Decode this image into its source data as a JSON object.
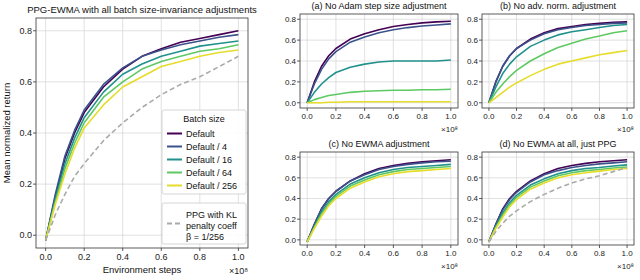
{
  "chart_data": [
    {
      "type": "line",
      "title": "PPG-EWMA with all batch size-invariance adjustments",
      "x_label": "Environment steps",
      "y_label": "Mean normalized return",
      "x_multiplier": "×10⁸",
      "legend_title": "Batch size",
      "legend": "lower right",
      "grid": true,
      "xlim": [
        -0.05,
        1.05
      ],
      "ylim": [
        -0.05,
        0.85
      ],
      "xticks": [
        {
          "value": 0,
          "label": "0.0"
        },
        {
          "value": 0.2,
          "label": "0.2"
        },
        {
          "value": 0.4,
          "label": "0.4"
        },
        {
          "value": 0.6,
          "label": "0.6"
        },
        {
          "value": 0.8,
          "label": "0.8"
        },
        {
          "value": 1,
          "label": "1.0"
        }
      ],
      "yticks": [
        {
          "value": 0,
          "label": "0.0"
        },
        {
          "value": 0.2,
          "label": "0.2"
        },
        {
          "value": 0.4,
          "label": "0.4"
        },
        {
          "value": 0.6,
          "label": "0.6"
        },
        {
          "value": 0.8,
          "label": "0.8"
        }
      ],
      "x": [
        0,
        0.05,
        0.1,
        0.15,
        0.2,
        0.3,
        0.4,
        0.5,
        0.6,
        0.7,
        0.8,
        0.9,
        1.0
      ],
      "series": [
        {
          "name": "Default",
          "color": "#440154",
          "values": [
            -0.02,
            0.15,
            0.3,
            0.4,
            0.48,
            0.58,
            0.65,
            0.7,
            0.73,
            0.755,
            0.77,
            0.785,
            0.8
          ]
        },
        {
          "name": "Default / 4",
          "color": "#3b528b",
          "values": [
            -0.02,
            0.16,
            0.31,
            0.41,
            0.49,
            0.59,
            0.655,
            0.7,
            0.725,
            0.745,
            0.76,
            0.775,
            0.785
          ]
        },
        {
          "name": "Default / 16",
          "color": "#21918c",
          "values": [
            -0.02,
            0.14,
            0.28,
            0.38,
            0.46,
            0.56,
            0.63,
            0.67,
            0.7,
            0.72,
            0.74,
            0.75,
            0.76
          ]
        },
        {
          "name": "Default / 64",
          "color": "#5ec962",
          "values": [
            -0.02,
            0.13,
            0.26,
            0.36,
            0.44,
            0.54,
            0.6,
            0.65,
            0.68,
            0.7,
            0.72,
            0.73,
            0.745
          ]
        },
        {
          "name": "Default / 256",
          "color": "#e6dc2a",
          "values": [
            -0.02,
            0.12,
            0.24,
            0.34,
            0.42,
            0.51,
            0.58,
            0.62,
            0.66,
            0.68,
            0.7,
            0.715,
            0.725
          ]
        },
        {
          "name": "PPG with KL penalty coeff β = 1/256",
          "color": "#aaaaaa",
          "line_style": "dashed",
          "values": [
            -0.02,
            0.08,
            0.16,
            0.23,
            0.28,
            0.37,
            0.44,
            0.5,
            0.55,
            0.59,
            0.62,
            0.66,
            0.7
          ]
        }
      ]
    },
    {
      "type": "line",
      "title": "(a) No Adam step size adjustment",
      "x_multiplier": "×10⁸",
      "grid": true,
      "xlim": [
        -0.05,
        1.05
      ],
      "ylim": [
        -0.05,
        0.85
      ],
      "xticks": [
        {
          "value": 0,
          "label": "0.0"
        },
        {
          "value": 0.2,
          "label": "0.2"
        },
        {
          "value": 0.4,
          "label": "0.4"
        },
        {
          "value": 0.6,
          "label": "0.6"
        },
        {
          "value": 0.8,
          "label": "0.8"
        },
        {
          "value": 1,
          "label": "1.0"
        }
      ],
      "yticks": [
        {
          "value": 0,
          "label": "0.0"
        },
        {
          "value": 0.2,
          "label": "0.2"
        },
        {
          "value": 0.4,
          "label": "0.4"
        },
        {
          "value": 0.6,
          "label": "0.6"
        },
        {
          "value": 0.8,
          "label": "0.8"
        }
      ],
      "x": [
        0,
        0.05,
        0.1,
        0.15,
        0.2,
        0.3,
        0.4,
        0.5,
        0.6,
        0.7,
        0.8,
        0.9,
        1.0
      ],
      "series": [
        {
          "color": "#440154",
          "values": [
            0,
            0.2,
            0.35,
            0.45,
            0.52,
            0.61,
            0.66,
            0.7,
            0.73,
            0.75,
            0.765,
            0.775,
            0.78
          ]
        },
        {
          "color": "#3b528b",
          "values": [
            0,
            0.18,
            0.32,
            0.42,
            0.49,
            0.58,
            0.63,
            0.67,
            0.7,
            0.72,
            0.735,
            0.745,
            0.755
          ]
        },
        {
          "color": "#21918c",
          "values": [
            0,
            0.1,
            0.18,
            0.24,
            0.29,
            0.34,
            0.37,
            0.39,
            0.4,
            0.4,
            0.4,
            0.4,
            0.41
          ]
        },
        {
          "color": "#5ec962",
          "values": [
            0,
            0.03,
            0.05,
            0.07,
            0.08,
            0.1,
            0.11,
            0.115,
            0.12,
            0.12,
            0.125,
            0.125,
            0.13
          ]
        },
        {
          "color": "#e6dc2a",
          "values": [
            0,
            0,
            0,
            0.005,
            0.005,
            0.01,
            0.01,
            0.01,
            0.01,
            0.01,
            0.01,
            0.01,
            0.01
          ]
        }
      ]
    },
    {
      "type": "line",
      "title": "(b) No adv. norm. adjustment",
      "x_multiplier": "×10⁸",
      "grid": true,
      "xlim": [
        -0.05,
        1.05
      ],
      "ylim": [
        -0.05,
        0.85
      ],
      "xticks": [
        {
          "value": 0,
          "label": "0.0"
        },
        {
          "value": 0.2,
          "label": "0.2"
        },
        {
          "value": 0.4,
          "label": "0.4"
        },
        {
          "value": 0.6,
          "label": "0.6"
        },
        {
          "value": 0.8,
          "label": "0.8"
        },
        {
          "value": 1,
          "label": "1.0"
        }
      ],
      "yticks": [
        {
          "value": 0,
          "label": "0.0"
        },
        {
          "value": 0.2,
          "label": "0.2"
        },
        {
          "value": 0.4,
          "label": "0.4"
        },
        {
          "value": 0.6,
          "label": "0.6"
        },
        {
          "value": 0.8,
          "label": "0.8"
        }
      ],
      "x": [
        0,
        0.05,
        0.1,
        0.15,
        0.2,
        0.3,
        0.4,
        0.5,
        0.6,
        0.7,
        0.8,
        0.9,
        1.0
      ],
      "series": [
        {
          "color": "#440154",
          "values": [
            0,
            0.2,
            0.35,
            0.45,
            0.52,
            0.61,
            0.67,
            0.71,
            0.73,
            0.75,
            0.76,
            0.77,
            0.775
          ]
        },
        {
          "color": "#3b528b",
          "values": [
            0,
            0.2,
            0.35,
            0.45,
            0.52,
            0.6,
            0.66,
            0.7,
            0.72,
            0.74,
            0.75,
            0.76,
            0.765
          ]
        },
        {
          "color": "#21918c",
          "values": [
            0,
            0.15,
            0.28,
            0.37,
            0.44,
            0.54,
            0.6,
            0.65,
            0.68,
            0.7,
            0.72,
            0.74,
            0.75
          ]
        },
        {
          "color": "#5ec962",
          "values": [
            0,
            0.1,
            0.18,
            0.25,
            0.31,
            0.4,
            0.47,
            0.53,
            0.57,
            0.61,
            0.64,
            0.67,
            0.69
          ]
        },
        {
          "color": "#e6dc2a",
          "values": [
            0,
            0.05,
            0.1,
            0.15,
            0.19,
            0.26,
            0.32,
            0.37,
            0.4,
            0.43,
            0.46,
            0.48,
            0.5
          ]
        }
      ]
    },
    {
      "type": "line",
      "title": "(c) No EWMA adjustment",
      "x_multiplier": "×10⁸",
      "grid": true,
      "xlim": [
        -0.05,
        1.05
      ],
      "ylim": [
        -0.05,
        0.85
      ],
      "xticks": [
        {
          "value": 0,
          "label": "0.0"
        },
        {
          "value": 0.2,
          "label": "0.2"
        },
        {
          "value": 0.4,
          "label": "0.4"
        },
        {
          "value": 0.6,
          "label": "0.6"
        },
        {
          "value": 0.8,
          "label": "0.8"
        },
        {
          "value": 1,
          "label": "1.0"
        }
      ],
      "yticks": [
        {
          "value": 0,
          "label": "0.0"
        },
        {
          "value": 0.2,
          "label": "0.2"
        },
        {
          "value": 0.4,
          "label": "0.4"
        },
        {
          "value": 0.6,
          "label": "0.6"
        },
        {
          "value": 0.8,
          "label": "0.8"
        }
      ],
      "x": [
        0,
        0.05,
        0.1,
        0.15,
        0.2,
        0.3,
        0.4,
        0.5,
        0.6,
        0.7,
        0.8,
        0.9,
        1.0
      ],
      "series": [
        {
          "color": "#440154",
          "values": [
            -0.02,
            0.15,
            0.3,
            0.4,
            0.47,
            0.57,
            0.64,
            0.69,
            0.72,
            0.74,
            0.755,
            0.765,
            0.775
          ]
        },
        {
          "color": "#3b528b",
          "values": [
            -0.02,
            0.15,
            0.3,
            0.4,
            0.47,
            0.57,
            0.63,
            0.68,
            0.71,
            0.73,
            0.745,
            0.755,
            0.76
          ]
        },
        {
          "color": "#21918c",
          "values": [
            -0.02,
            0.13,
            0.27,
            0.37,
            0.44,
            0.54,
            0.6,
            0.65,
            0.68,
            0.7,
            0.71,
            0.72,
            0.73
          ]
        },
        {
          "color": "#5ec962",
          "values": [
            -0.02,
            0.12,
            0.25,
            0.35,
            0.42,
            0.52,
            0.58,
            0.63,
            0.66,
            0.68,
            0.69,
            0.7,
            0.71
          ]
        },
        {
          "color": "#e6dc2a",
          "values": [
            -0.02,
            0.11,
            0.23,
            0.33,
            0.4,
            0.5,
            0.56,
            0.61,
            0.64,
            0.66,
            0.67,
            0.68,
            0.69
          ]
        }
      ]
    },
    {
      "type": "line",
      "title": "(d) No EWMA at all, just PPG",
      "x_multiplier": "×10⁸",
      "grid": true,
      "xlim": [
        -0.05,
        1.05
      ],
      "ylim": [
        -0.05,
        0.85
      ],
      "xticks": [
        {
          "value": 0,
          "label": "0.0"
        },
        {
          "value": 0.2,
          "label": "0.2"
        },
        {
          "value": 0.4,
          "label": "0.4"
        },
        {
          "value": 0.6,
          "label": "0.6"
        },
        {
          "value": 0.8,
          "label": "0.8"
        },
        {
          "value": 1,
          "label": "1.0"
        }
      ],
      "yticks": [
        {
          "value": 0,
          "label": "0.0"
        },
        {
          "value": 0.2,
          "label": "0.2"
        },
        {
          "value": 0.4,
          "label": "0.4"
        },
        {
          "value": 0.6,
          "label": "0.6"
        },
        {
          "value": 0.8,
          "label": "0.8"
        }
      ],
      "x": [
        0,
        0.05,
        0.1,
        0.15,
        0.2,
        0.3,
        0.4,
        0.5,
        0.6,
        0.7,
        0.8,
        0.9,
        1.0
      ],
      "series": [
        {
          "color": "#440154",
          "values": [
            -0.02,
            0.15,
            0.3,
            0.4,
            0.47,
            0.57,
            0.64,
            0.69,
            0.72,
            0.74,
            0.755,
            0.765,
            0.775
          ]
        },
        {
          "color": "#3b528b",
          "values": [
            -0.02,
            0.15,
            0.29,
            0.39,
            0.46,
            0.56,
            0.63,
            0.67,
            0.7,
            0.72,
            0.735,
            0.745,
            0.755
          ]
        },
        {
          "color": "#21918c",
          "values": [
            -0.02,
            0.13,
            0.26,
            0.36,
            0.43,
            0.53,
            0.59,
            0.64,
            0.67,
            0.69,
            0.7,
            0.715,
            0.725
          ]
        },
        {
          "color": "#5ec962",
          "values": [
            -0.02,
            0.12,
            0.24,
            0.34,
            0.41,
            0.51,
            0.57,
            0.62,
            0.65,
            0.67,
            0.68,
            0.695,
            0.705
          ]
        },
        {
          "color": "#e6dc2a",
          "values": [
            -0.02,
            0.11,
            0.22,
            0.32,
            0.39,
            0.49,
            0.55,
            0.6,
            0.63,
            0.65,
            0.665,
            0.68,
            0.69
          ]
        },
        {
          "color": "#aaaaaa",
          "line_style": "dashed",
          "values": [
            -0.02,
            0.08,
            0.16,
            0.23,
            0.28,
            0.37,
            0.44,
            0.5,
            0.55,
            0.59,
            0.62,
            0.66,
            0.7
          ]
        }
      ]
    }
  ]
}
